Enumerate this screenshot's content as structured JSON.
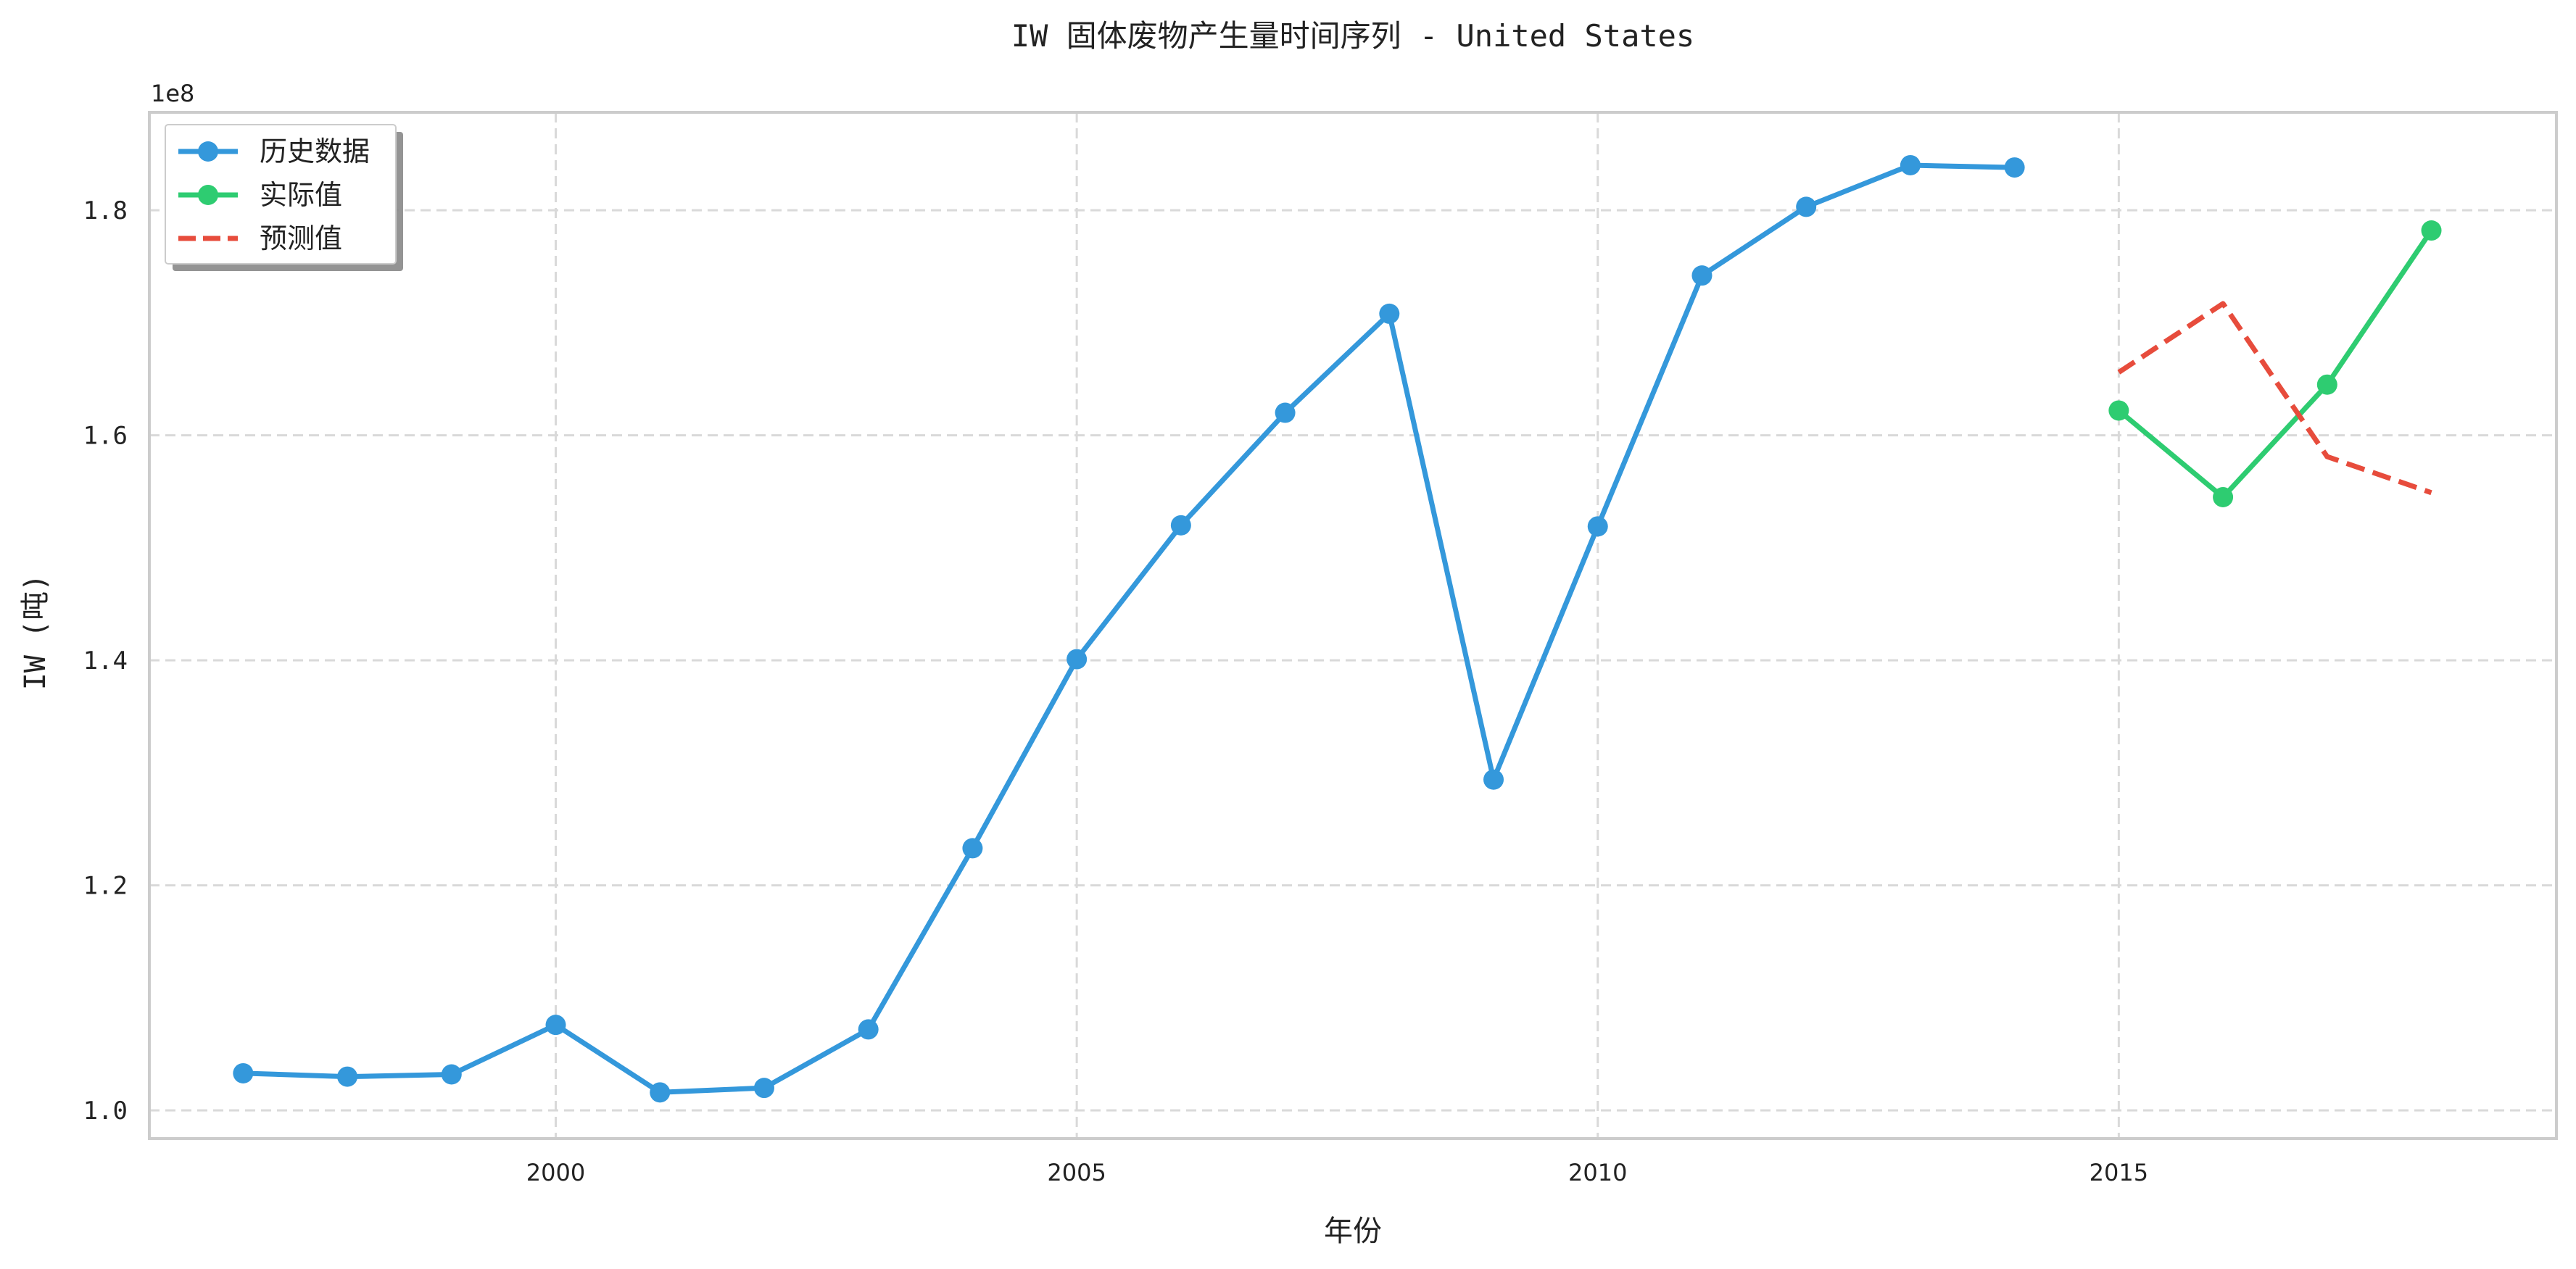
{
  "chart_data": {
    "type": "line",
    "title": "IW 固体废物产生量时间序列 - United States",
    "xlabel": "年份",
    "ylabel": "IW (吨)",
    "y_offset_label": "1e8",
    "xlim": [
      1996.1,
      2019.2
    ],
    "ylim": [
      0.975,
      1.887
    ],
    "y_scale": 100000000,
    "x_ticks": [
      2000,
      2005,
      2010,
      2015
    ],
    "x_tick_labels": [
      "2000",
      "2005",
      "2010",
      "2015"
    ],
    "y_ticks": [
      1.0,
      1.2,
      1.4,
      1.6,
      1.8
    ],
    "y_tick_labels": [
      "1.0",
      "1.2",
      "1.4",
      "1.6",
      "1.8"
    ],
    "grid": true,
    "legend_position": "top-left",
    "series": [
      {
        "name": "历史数据",
        "color": "#3498db",
        "style": "solid",
        "marker": true,
        "x": [
          1997,
          1998,
          1999,
          2000,
          2001,
          2002,
          2003,
          2004,
          2005,
          2006,
          2007,
          2008,
          2009,
          2010,
          2011,
          2012,
          2013,
          2014
        ],
        "values": [
          1.033,
          1.03,
          1.032,
          1.076,
          1.016,
          1.02,
          1.072,
          1.233,
          1.401,
          1.52,
          1.62,
          1.708,
          1.294,
          1.519,
          1.742,
          1.803,
          1.84,
          1.838
        ]
      },
      {
        "name": "实际值",
        "color": "#2ecc71",
        "style": "solid",
        "marker": true,
        "x": [
          2015,
          2016,
          2017,
          2018
        ],
        "values": [
          1.622,
          1.545,
          1.645,
          1.782
        ]
      },
      {
        "name": "预测值",
        "color": "#e74c3c",
        "style": "dashed",
        "marker": false,
        "x": [
          2015,
          2016,
          2017,
          2018
        ],
        "values": [
          1.656,
          1.717,
          1.581,
          1.549
        ]
      }
    ]
  }
}
